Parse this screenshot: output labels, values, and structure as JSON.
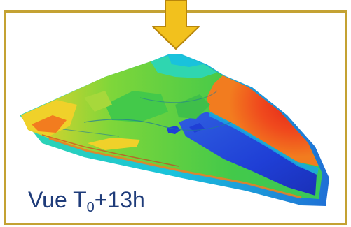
{
  "figure": {
    "frame_color": "#c4a233",
    "arrow_color": "#f2c11d",
    "arrow_outline": "#b8860b",
    "caption": {
      "prefix": "Vue T",
      "subscript": "0",
      "suffix": "+13h",
      "color": "#1f3c7a"
    },
    "arrow_icon": "down-arrow-icon",
    "elevation_palette": [
      "#1f3fd6",
      "#19a5e6",
      "#2fd6b0",
      "#43c94a",
      "#a7d83b",
      "#f0d12a",
      "#f27c1f",
      "#e2231a"
    ]
  }
}
